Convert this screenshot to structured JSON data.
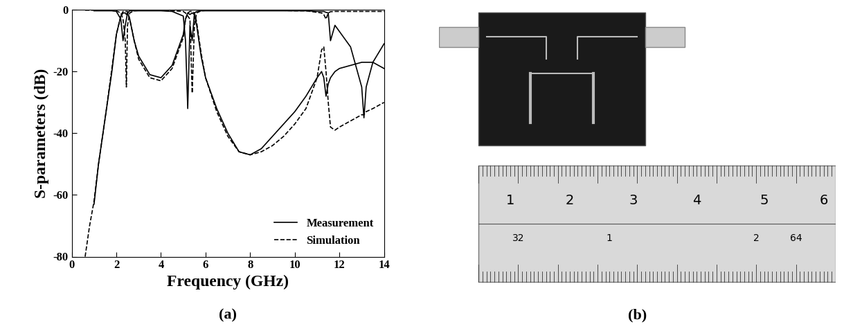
{
  "chart_data": {
    "type": "line",
    "caption": "(a)",
    "x_label": "Frequency (GHz)",
    "y_label": "S-parameters (dB)",
    "xlim": [
      0,
      14
    ],
    "xticks": [
      0,
      2,
      4,
      6,
      8,
      10,
      12,
      14
    ],
    "ylim": [
      -80,
      0
    ],
    "yticks": [
      -80,
      -60,
      -40,
      -20,
      0
    ],
    "grid": false,
    "legend": "lower right",
    "x": [
      0.6,
      0.8,
      1.0,
      1.2,
      1.5,
      1.8,
      2.0,
      2.2,
      2.3,
      2.4,
      2.45,
      2.5,
      2.6,
      2.8,
      3.0,
      3.5,
      4.0,
      4.5,
      5.0,
      5.1,
      5.2,
      5.3,
      5.4,
      5.5,
      5.6,
      5.8,
      6.0,
      6.5,
      7.0,
      7.5,
      8.0,
      8.5,
      9.0,
      9.5,
      10.0,
      10.5,
      11.0,
      11.2,
      11.3,
      11.4,
      11.5,
      11.6,
      11.8,
      12.0,
      12.5,
      13.0,
      13.1,
      13.2,
      13.5,
      14.0
    ],
    "series": [
      {
        "name": "Measurement",
        "color": "#000000",
        "line_style": "solid",
        "values": [
          null,
          null,
          -63,
          -50,
          -35,
          -20,
          -8,
          -2,
          -1,
          -1,
          -1.5,
          -1,
          -3,
          -10,
          -15,
          -21,
          -22,
          -18,
          -8,
          -3,
          -1,
          -1.5,
          -1,
          -1.5,
          -5,
          -15,
          -22,
          -32,
          -40,
          -46,
          -47,
          -45,
          -41,
          -37,
          -33,
          -28,
          -22,
          -20,
          -22,
          -28,
          -24,
          -22,
          -20,
          -19,
          -18,
          -17,
          -17,
          -17,
          -17,
          -19
        ]
      },
      {
        "color": "#000000",
        "line_style": "solid",
        "values": [
          null,
          null,
          -0.3,
          -0.3,
          -0.3,
          -0.3,
          -0.5,
          -3,
          -10,
          -5,
          -3,
          -1,
          -0.3,
          -0.3,
          -0.3,
          -0.3,
          -0.3,
          -0.5,
          -2,
          -10,
          -32,
          -5,
          -10,
          -1,
          -0.5,
          -0.3,
          -0.3,
          -0.3,
          -0.3,
          -0.3,
          -0.3,
          -0.3,
          -0.3,
          -0.3,
          -0.3,
          -0.3,
          -0.5,
          -0.5,
          -0.5,
          -0.8,
          -1,
          -10,
          -5,
          -7,
          -12,
          -25,
          -35,
          -25,
          -17,
          -11
        ]
      },
      {
        "name": "Simulation",
        "color": "#000000",
        "line_style": "dashed",
        "values": [
          -80,
          -70,
          -62,
          -50,
          -35,
          -19,
          -8,
          -2,
          -0.5,
          -0.5,
          -0.5,
          -0.5,
          -3,
          -10,
          -16,
          -22,
          -23,
          -19,
          -9,
          -3,
          -1,
          -0.5,
          -0.5,
          -1,
          -4,
          -14,
          -22,
          -33,
          -41,
          -46,
          -47,
          -46,
          -44,
          -41,
          -37,
          -32,
          -22,
          -13,
          -12,
          -20,
          -30,
          -38,
          -39,
          -38,
          -36,
          -34,
          -34,
          -33,
          -32,
          -30
        ]
      },
      {
        "color": "#000000",
        "line_style": "dashed",
        "values": [
          -0.1,
          -0.1,
          -0.1,
          -0.1,
          -0.1,
          -0.2,
          -0.3,
          -1,
          -3,
          -10,
          -25,
          -5,
          -1,
          -0.3,
          -0.2,
          -0.2,
          -0.2,
          -0.3,
          -0.5,
          -1,
          -2,
          -3,
          -27,
          -5,
          -1,
          -0.3,
          -0.2,
          -0.2,
          -0.2,
          -0.2,
          -0.2,
          -0.2,
          -0.2,
          -0.2,
          -0.3,
          -0.3,
          -0.8,
          -1,
          -1.5,
          -3,
          -1,
          -0.6,
          -0.5,
          -0.5,
          -0.5,
          -0.5,
          -0.5,
          -0.5,
          -0.5,
          -0.5
        ]
      }
    ]
  },
  "photo": {
    "caption": "(b)",
    "ruler_top_labels": [
      "1",
      "2",
      "3",
      "4",
      "5",
      "6"
    ],
    "ruler_bottom_labels": [
      "32",
      "1",
      "2",
      "64"
    ]
  }
}
